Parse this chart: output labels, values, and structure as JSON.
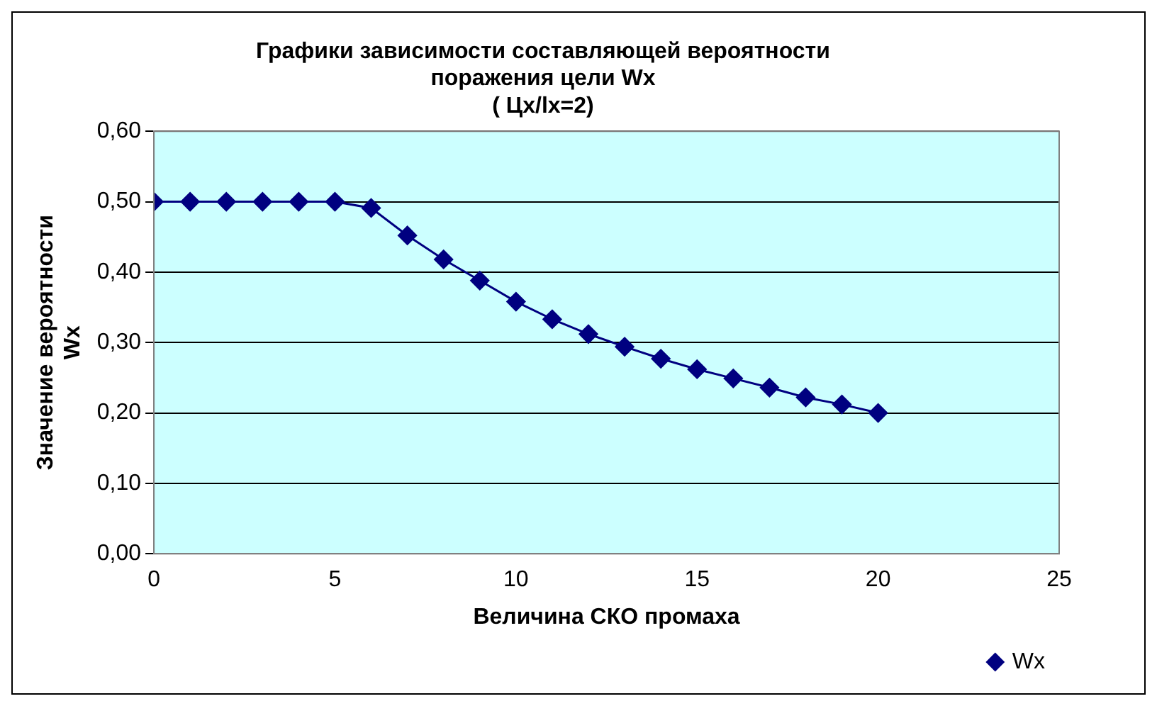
{
  "chart_data": {
    "type": "line",
    "title": "Графики зависимости составляющей вероятности\nпоражения цели Wx\n( Цx/lx=2)",
    "xlabel": "Величина СКО промаха",
    "ylabel": "Значение вероятности\nWx",
    "x": [
      0,
      1,
      2,
      3,
      4,
      5,
      6,
      7,
      8,
      9,
      10,
      11,
      12,
      13,
      14,
      15,
      16,
      17,
      18,
      19,
      20
    ],
    "series": [
      {
        "name": "Wx",
        "color": "#000080",
        "values": [
          0.5,
          0.5,
          0.5,
          0.5,
          0.5,
          0.5,
          0.491,
          0.452,
          0.418,
          0.388,
          0.358,
          0.333,
          0.312,
          0.294,
          0.277,
          0.262,
          0.249,
          0.236,
          0.222,
          0.212,
          0.2
        ]
      }
    ],
    "xlim": [
      0,
      25
    ],
    "xticks": [
      0,
      5,
      10,
      15,
      20,
      25
    ],
    "ylim": [
      0,
      0.6
    ],
    "yticks": [
      {
        "value": 0,
        "label": "0,00"
      },
      {
        "value": 0.1,
        "label": "0,10"
      },
      {
        "value": 0.2,
        "label": "0,20"
      },
      {
        "value": 0.3,
        "label": "0,30"
      },
      {
        "value": 0.4,
        "label": "0,40"
      },
      {
        "value": 0.5,
        "label": "0,50"
      },
      {
        "value": 0.6,
        "label": "0,60"
      }
    ],
    "grid": "y",
    "legend": "bottom right",
    "marker": "diamond",
    "line_style": "solid"
  }
}
